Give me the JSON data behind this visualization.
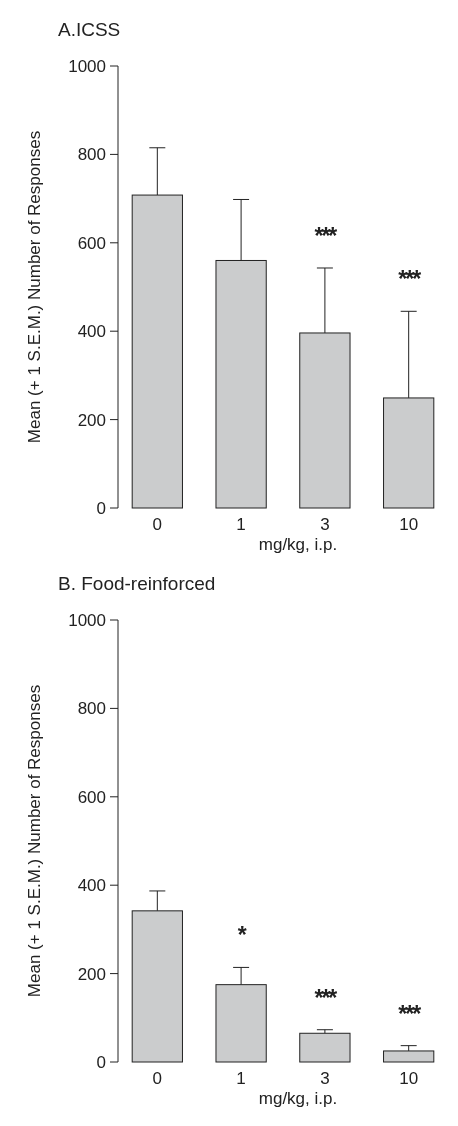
{
  "chart_data": [
    {
      "type": "bar",
      "title": "A.ICSS",
      "xlabel": "mg/kg, i.p.",
      "ylabel": "Mean (+ 1 S.E.M.) Number of Responses",
      "categories": [
        "0",
        "1",
        "3",
        "10"
      ],
      "values": [
        708,
        560,
        396,
        249
      ],
      "errors": [
        [
          708,
          815
        ],
        [
          560,
          698
        ],
        [
          396,
          543
        ],
        [
          249,
          445
        ]
      ],
      "color": "#cbcccd",
      "ylim": [
        0,
        1000
      ],
      "yticks": [
        0,
        200,
        400,
        600,
        800,
        1000
      ],
      "annotations": [
        {
          "text": "***",
          "x": "3",
          "y": 543
        },
        {
          "text": "***",
          "x": "10",
          "y": 445
        }
      ]
    },
    {
      "type": "bar",
      "title": "B. Food-reinforced",
      "xlabel": "mg/kg, i.p.",
      "ylabel": "Mean (+ 1 S.E.M.) Number of Responses",
      "categories": [
        "0",
        "1",
        "3",
        "10"
      ],
      "values": [
        342,
        175,
        65,
        25
      ],
      "errors": [
        [
          342,
          387
        ],
        [
          175,
          214
        ],
        [
          65,
          73
        ],
        [
          25,
          37
        ]
      ],
      "color": "#cbcccd",
      "ylim": [
        0,
        1000
      ],
      "yticks": [
        0,
        200,
        400,
        600,
        800,
        1000
      ],
      "annotations": [
        {
          "text": "*",
          "x": "1",
          "y": 214
        },
        {
          "text": "***",
          "x": "3",
          "y": 73
        },
        {
          "text": "***",
          "x": "10",
          "y": 37
        }
      ]
    }
  ]
}
